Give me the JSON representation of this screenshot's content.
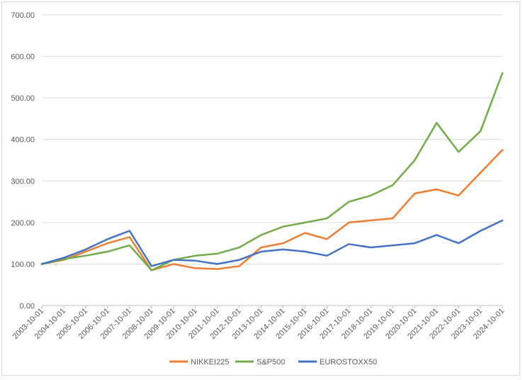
{
  "chart_data": {
    "type": "line",
    "title": "",
    "xlabel": "",
    "ylabel": "",
    "ylim": [
      0,
      700
    ],
    "yticks": [
      "0.00",
      "100.00",
      "200.00",
      "300.00",
      "400.00",
      "500.00",
      "600.00",
      "700.00"
    ],
    "grid": true,
    "legend_position": "bottom",
    "x": [
      "2003-10-01",
      "2004-10-01",
      "2005-10-01",
      "2006-10-01",
      "2007-10-01",
      "2008-10-01",
      "2009-10-01",
      "2010-10-01",
      "2011-10-01",
      "2012-10-01",
      "2013-10-01",
      "2014-10-01",
      "2015-10-01",
      "2016-10-01",
      "2017-10-01",
      "2018-10-01",
      "2019-10-01",
      "2020-10-01",
      "2021-10-01",
      "2022-10-01",
      "2023-10-01",
      "2024-10-01"
    ],
    "series": [
      {
        "name": "NIKKEI225",
        "color": "#ed7d31",
        "values": [
          100,
          110,
          130,
          150,
          165,
          85,
          100,
          90,
          88,
          95,
          140,
          150,
          175,
          160,
          200,
          205,
          210,
          270,
          280,
          265,
          320,
          375
        ]
      },
      {
        "name": "S&P500",
        "color": "#70ad47",
        "values": [
          100,
          112,
          120,
          130,
          145,
          85,
          110,
          120,
          125,
          140,
          170,
          190,
          200,
          210,
          250,
          265,
          290,
          350,
          440,
          370,
          420,
          560
        ]
      },
      {
        "name": "EUROSTOXX50",
        "color": "#4472c4",
        "values": [
          100,
          115,
          135,
          160,
          180,
          95,
          110,
          108,
          100,
          110,
          130,
          135,
          130,
          120,
          148,
          140,
          145,
          150,
          170,
          150,
          180,
          205
        ]
      }
    ]
  }
}
